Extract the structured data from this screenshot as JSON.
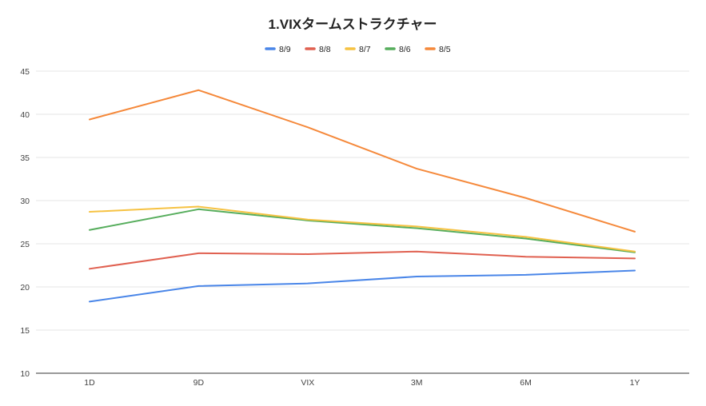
{
  "chart_data": {
    "type": "line",
    "title": "1.VIXタームストラクチャー",
    "xlabel": "",
    "ylabel": "",
    "categories": [
      "1D",
      "9D",
      "VIX",
      "3M",
      "6M",
      "1Y"
    ],
    "ylim": [
      10,
      45
    ],
    "yticks": [
      10,
      15,
      20,
      25,
      30,
      35,
      40,
      45
    ],
    "grid": true,
    "legend_position": "top",
    "series": [
      {
        "name": "8/9",
        "color": "#4a86e8",
        "values": [
          18.3,
          20.1,
          20.4,
          21.2,
          21.4,
          21.9
        ]
      },
      {
        "name": "8/8",
        "color": "#e06050",
        "values": [
          22.1,
          23.9,
          23.8,
          24.1,
          23.5,
          23.3
        ]
      },
      {
        "name": "8/7",
        "color": "#f6c242",
        "values": [
          28.7,
          29.3,
          27.8,
          27.0,
          25.8,
          24.1
        ]
      },
      {
        "name": "8/6",
        "color": "#56ad5c",
        "values": [
          26.6,
          29.0,
          27.7,
          26.8,
          25.6,
          24.0
        ]
      },
      {
        "name": "8/5",
        "color": "#f5893b",
        "values": [
          39.4,
          42.8,
          38.5,
          33.7,
          30.3,
          26.4
        ]
      }
    ]
  }
}
